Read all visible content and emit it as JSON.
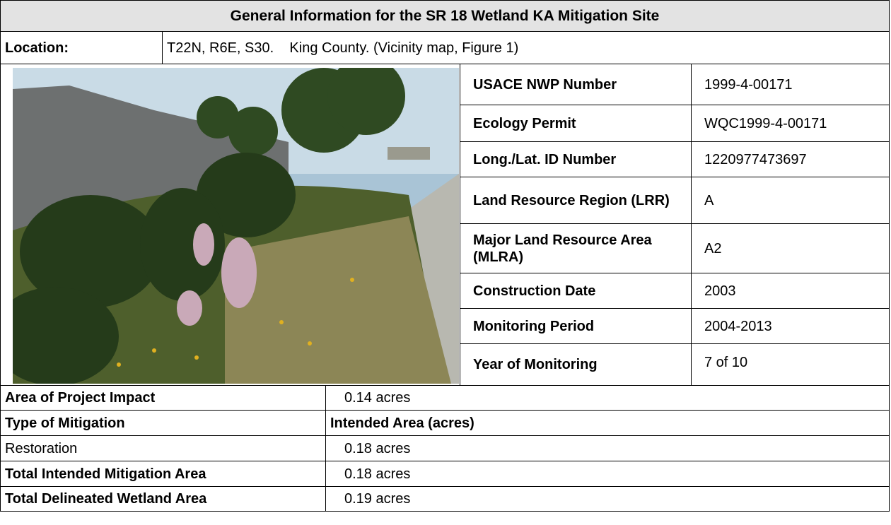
{
  "title": "General Information for the SR 18 Wetland KA Mitigation Site",
  "location": {
    "label": "Location:",
    "value": "T22N, R6E, S30.    King County. (Vicinity map, Figure 1)"
  },
  "permits": [
    {
      "label": "USACE NWP Number",
      "value": "1999-4-00171"
    },
    {
      "label": "Ecology Permit",
      "value": "WQC1999-4-00171"
    },
    {
      "label": "Long./Lat. ID Number",
      "value": "1220977473697"
    },
    {
      "label": "Land Resource Region (LRR)",
      "value": "A"
    },
    {
      "label": "Major Land Resource Area (MLRA)",
      "value": "A2"
    },
    {
      "label": "Construction Date",
      "value": "2003"
    },
    {
      "label": "Monitoring Period",
      "value": "2004-2013"
    },
    {
      "label": "Year of Monitoring",
      "value": "7 of 10"
    }
  ],
  "summary": [
    {
      "label": "Area of Project Impact",
      "value": "0.14 acres"
    },
    {
      "label": "Type of Mitigation",
      "value": "Intended Area (acres)"
    },
    {
      "label": "Restoration",
      "value": "0.18 acres"
    },
    {
      "label": "Total Intended Mitigation Area",
      "value": "0.18 acres"
    },
    {
      "label": "Total Delineated Wetland Area",
      "value": "0.19 acres"
    }
  ]
}
